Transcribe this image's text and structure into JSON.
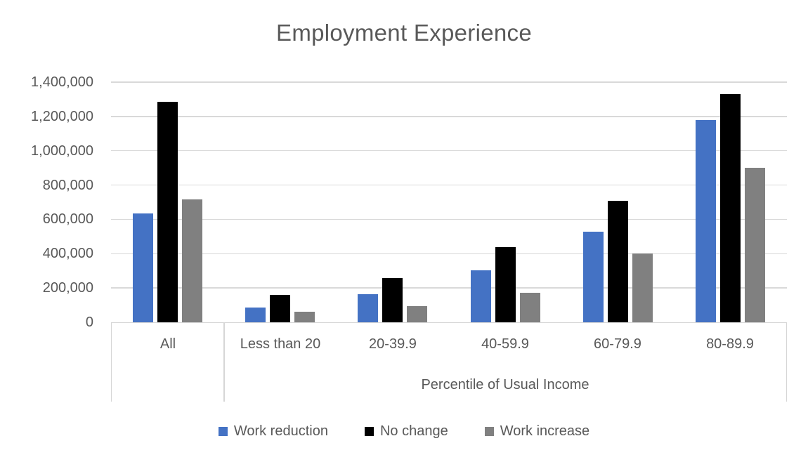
{
  "chart_data": {
    "type": "bar",
    "title": "Employment Experience",
    "categories": [
      "All",
      "Less than 20",
      "20-39.9",
      "40-59.9",
      "60-79.9",
      "80-89.9"
    ],
    "x_axis_group_label": "Percentile of Usual Income",
    "x_axis_group_label_span_categories": [
      "Less than 20",
      "20-39.9",
      "40-59.9",
      "60-79.9",
      "80-89.9"
    ],
    "series": [
      {
        "name": "Work reduction",
        "color": "#4472C4",
        "values": [
          635000,
          85000,
          165000,
          305000,
          530000,
          1180000
        ]
      },
      {
        "name": "No change",
        "color": "#000000",
        "values": [
          1285000,
          160000,
          258000,
          440000,
          710000,
          1330000
        ]
      },
      {
        "name": "Work increase",
        "color": "#808080",
        "values": [
          715000,
          60000,
          95000,
          170000,
          400000,
          900000
        ]
      }
    ],
    "ylim": [
      0,
      1400000
    ],
    "ytick_interval": 200000,
    "yticks": [
      {
        "value": 0,
        "label": "0"
      },
      {
        "value": 200000,
        "label": "200,000"
      },
      {
        "value": 400000,
        "label": "400,000"
      },
      {
        "value": 600000,
        "label": "600,000"
      },
      {
        "value": 800000,
        "label": "800,000"
      },
      {
        "value": 1000000,
        "label": "1,000,000"
      },
      {
        "value": 1200000,
        "label": "1,200,000"
      },
      {
        "value": 1400000,
        "label": "1,400,000"
      }
    ],
    "grid": true,
    "legend_position": "bottom",
    "legend": [
      "Work reduction",
      "No change",
      "Work increase"
    ]
  },
  "colors": {
    "text": "#595959",
    "gridline": "#D9D9D9",
    "axis_line": "#D6D6D6"
  }
}
